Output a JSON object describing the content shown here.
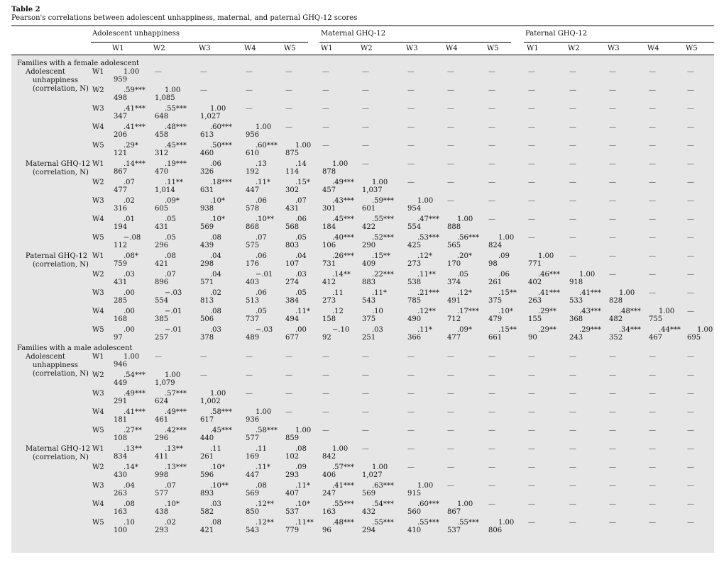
{
  "caption": {
    "title": "Table 2",
    "subtitle": "Pearson's correlations between adolescent unhappiness, maternal, and paternal GHQ-12 scores"
  },
  "groups": [
    "Adolescent unhappiness",
    "Maternal GHQ-12",
    "Paternal GHQ-12"
  ],
  "waves": [
    "W1",
    "W2",
    "W3",
    "W4",
    "W5"
  ],
  "dash": "—",
  "sections": [
    {
      "title": "Families with a female adolescent",
      "blocks": [
        {
          "label": [
            "Adolescent",
            "unhappiness",
            "(correlation, N)"
          ],
          "rows": [
            {
              "wave": "W1",
              "r": [
                "1.00"
              ],
              "n": [
                "959"
              ]
            },
            {
              "wave": "W2",
              "r": [
                ".59***",
                "1.00"
              ],
              "n": [
                "498",
                "1,085"
              ]
            },
            {
              "wave": "W3",
              "r": [
                ".41***",
                ".55***",
                "1.00"
              ],
              "n": [
                "347",
                "648",
                "1,027"
              ]
            },
            {
              "wave": "W4",
              "r": [
                ".41***",
                ".48***",
                ".60***",
                "1.00"
              ],
              "n": [
                "206",
                "458",
                "613",
                "956"
              ]
            },
            {
              "wave": "W5",
              "r": [
                ".29*",
                ".45***",
                ".50***",
                ".60***",
                "1.00"
              ],
              "n": [
                "121",
                "312",
                "460",
                "610",
                "875"
              ]
            }
          ]
        },
        {
          "label": [
            "Maternal GHQ-12",
            "(correlation, N)"
          ],
          "rows": [
            {
              "wave": "W1",
              "r": [
                ".14***",
                ".19***",
                ".06",
                ".13",
                ".14",
                "1.00"
              ],
              "n": [
                "867",
                "470",
                "326",
                "192",
                "114",
                "878"
              ]
            },
            {
              "wave": "W2",
              "r": [
                ".07",
                ".11**",
                ".18***",
                ".11*",
                ".15*",
                ".49***",
                "1.00"
              ],
              "n": [
                "477",
                "1,014",
                "631",
                "447",
                "302",
                "457",
                "1,037"
              ]
            },
            {
              "wave": "W3",
              "r": [
                ".02",
                ".09*",
                ".10*",
                ".06",
                ".07",
                ".43***",
                ".59***",
                "1.00"
              ],
              "n": [
                "316",
                "605",
                "938",
                "578",
                "431",
                "301",
                "601",
                "954"
              ]
            },
            {
              "wave": "W4",
              "r": [
                ".01",
                ".05",
                ".10*",
                ".10**",
                ".06",
                ".45***",
                ".55***",
                ".47***",
                "1.00"
              ],
              "n": [
                "194",
                "431",
                "569",
                "868",
                "568",
                "184",
                "422",
                "554",
                "888"
              ]
            },
            {
              "wave": "W5",
              "r": [
                "−.08",
                ".05",
                ".08",
                ".07",
                ".05",
                ".40***",
                ".52***",
                ".53***",
                ".56***",
                "1.00"
              ],
              "n": [
                "112",
                "296",
                "439",
                "575",
                "803",
                "106",
                "290",
                "425",
                "565",
                "824"
              ]
            }
          ]
        },
        {
          "label": [
            "Paternal GHQ-12",
            "(correlation, N)"
          ],
          "rows": [
            {
              "wave": "W1",
              "r": [
                ".08*",
                ".08",
                ".04",
                ".06",
                ".04",
                ".26***",
                ".15**",
                ".12*",
                ".20*",
                ".09",
                "1.00"
              ],
              "n": [
                "759",
                "421",
                "298",
                "176",
                "107",
                "731",
                "409",
                "273",
                "170",
                "98",
                "771"
              ]
            },
            {
              "wave": "W2",
              "r": [
                ".03",
                ".07",
                ".04",
                "−.01",
                ".03",
                ".14**",
                ".22***",
                ".11**",
                ".05",
                ".06",
                ".46***",
                "1.00"
              ],
              "n": [
                "431",
                "896",
                "571",
                "403",
                "274",
                "412",
                "883",
                "538",
                "374",
                "261",
                "402",
                "918"
              ]
            },
            {
              "wave": "W3",
              "r": [
                ".00",
                "−.03",
                ".02",
                ".06",
                ".05",
                ".11",
                ".11*",
                ".21***",
                ".12*",
                ".15**",
                ".41***",
                ".41***",
                "1.00"
              ],
              "n": [
                "285",
                "554",
                "813",
                "513",
                "384",
                "273",
                "543",
                "785",
                "491",
                "375",
                "263",
                "533",
                "828"
              ]
            },
            {
              "wave": "W4",
              "r": [
                ".00",
                "−.01",
                ".08",
                ".05",
                ".11*",
                ".12",
                ".10",
                ".12**",
                ".17***",
                ".10*",
                ".29**",
                ".43***",
                ".48***",
                "1.00"
              ],
              "n": [
                "168",
                "385",
                "506",
                "737",
                "494",
                "158",
                "375",
                "490",
                "712",
                "479",
                "155",
                "368",
                "482",
                "755"
              ]
            },
            {
              "wave": "W5",
              "r": [
                ".00",
                "−.01",
                ".03",
                "−.03",
                ".00",
                "−.10",
                ".03",
                ".11*",
                ".09*",
                ".15**",
                ".29**",
                ".29***",
                ".34***",
                ".44***",
                "1.00"
              ],
              "n": [
                "97",
                "257",
                "378",
                "489",
                "677",
                "92",
                "251",
                "366",
                "477",
                "661",
                "90",
                "243",
                "352",
                "467",
                "695"
              ]
            }
          ]
        }
      ]
    },
    {
      "title": "Families with a male adolescent",
      "blocks": [
        {
          "label": [
            "Adolescent",
            "unhappiness",
            "(correlation, N)"
          ],
          "rows": [
            {
              "wave": "W1",
              "r": [
                "1.00"
              ],
              "n": [
                "946"
              ]
            },
            {
              "wave": "W2",
              "r": [
                ".54***",
                "1.00"
              ],
              "n": [
                "449",
                "1,079"
              ]
            },
            {
              "wave": "W3",
              "r": [
                ".49***",
                ".57***",
                "1.00"
              ],
              "n": [
                "291",
                "624",
                "1,002"
              ]
            },
            {
              "wave": "W4",
              "r": [
                ".41***",
                ".49***",
                ".58***",
                "1.00"
              ],
              "n": [
                "181",
                "461",
                "617",
                "936"
              ]
            },
            {
              "wave": "W5",
              "r": [
                ".27**",
                ".42***",
                ".45***",
                ".58***",
                "1.00"
              ],
              "n": [
                "108",
                "296",
                "440",
                "577",
                "859"
              ]
            }
          ]
        },
        {
          "label": [
            "Maternal GHQ-12",
            "(correlation, N)"
          ],
          "rows": [
            {
              "wave": "W1",
              "r": [
                ".13**",
                ".13**",
                ".11",
                ".11",
                ".08",
                "1.00"
              ],
              "n": [
                "834",
                "411",
                "261",
                "169",
                "102",
                "842"
              ]
            },
            {
              "wave": "W2",
              "r": [
                ".14*",
                ".13***",
                ".10*",
                ".11*",
                ".09",
                ".57***",
                "1.00"
              ],
              "n": [
                "430",
                "998",
                "596",
                "447",
                "293",
                "406",
                "1,027"
              ]
            },
            {
              "wave": "W3",
              "r": [
                ".04",
                ".07",
                ".10**",
                ".08",
                ".11*",
                ".41***",
                ".63***",
                "1.00"
              ],
              "n": [
                "263",
                "577",
                "893",
                "569",
                "407",
                "247",
                "569",
                "915"
              ]
            },
            {
              "wave": "W4",
              "r": [
                ".08",
                ".10*",
                ".03",
                ".12**",
                ".10*",
                ".55***",
                ".54***",
                ".60***",
                "1.00"
              ],
              "n": [
                "163",
                "438",
                "582",
                "850",
                "537",
                "163",
                "432",
                "560",
                "867"
              ]
            },
            {
              "wave": "W5",
              "r": [
                ".10",
                ".02",
                ".08",
                ".12**",
                ".11**",
                ".48***",
                ".55***",
                ".55***",
                ".55***",
                "1.00"
              ],
              "n": [
                "100",
                "293",
                "421",
                "543",
                "779",
                "96",
                "294",
                "410",
                "537",
                "806"
              ]
            }
          ]
        }
      ]
    }
  ]
}
